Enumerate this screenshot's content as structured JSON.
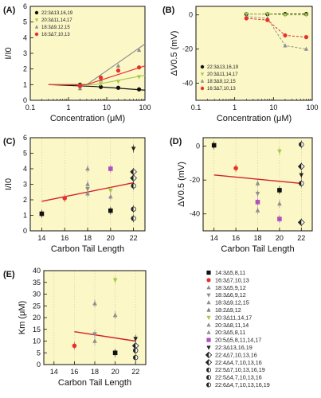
{
  "colors": {
    "plot_bg": "#fbf7c7",
    "species": {
      "14:3": "#111111",
      "16:3": "#e8302a",
      "18:3": "#8f8f8f",
      "18:2": "#7f7f7f",
      "20:3": "#a6c94a",
      "20:5": "#b050c0",
      "22:3": "#222222",
      "22:4": "#222222",
      "22:5": "#222222",
      "22:6": "#222222"
    }
  },
  "legend_E": [
    {
      "label": "14:3Δ5,8,11",
      "color": "#111111",
      "marker": "square"
    },
    {
      "label": "16:3Δ7,10,13",
      "color": "#e8302a",
      "marker": "circle"
    },
    {
      "label": "18:3Δ5,9,12",
      "color": "#8f8f8f",
      "marker": "triangle"
    },
    {
      "label": "18:3Δ6,9,12",
      "color": "#8f8f8f",
      "marker": "triangle-down"
    },
    {
      "label": "18:3Δ9,12,15",
      "color": "#8f8f8f",
      "marker": "triangle"
    },
    {
      "label": "18:2Δ9,12",
      "color": "#7f7f7f",
      "marker": "triangle"
    },
    {
      "label": "20:3Δ11,14,17",
      "color": "#a6c94a",
      "marker": "triangle-down"
    },
    {
      "label": "20:3Δ8,11,14",
      "color": "#8f8f8f",
      "marker": "triangle"
    },
    {
      "label": "20:3Δ5,8,11",
      "color": "#8f8f8f",
      "marker": "triangle"
    },
    {
      "label": "20:5Δ5,8,11,14,17",
      "color": "#b050c0",
      "marker": "square"
    },
    {
      "label": "22:3Δ13,16,19",
      "color": "#222222",
      "marker": "triangle-down"
    },
    {
      "label": "22:4Δ7,10,13,16",
      "color": "#222222",
      "marker": "diamond-half"
    },
    {
      "label": "22:4Δ4,7,10,13,16",
      "color": "#222222",
      "marker": "diamond-half"
    },
    {
      "label": "22:5Δ7,10,13,16,19",
      "color": "#222222",
      "marker": "circle-half"
    },
    {
      "label": "22:5Δ4,7,10,13,16",
      "color": "#222222",
      "marker": "circle-half"
    },
    {
      "label": "22:6Δ4,7,10,13,16,19",
      "color": "#222222",
      "marker": "circle-half"
    }
  ],
  "chart_data": [
    {
      "panel": "(A)",
      "type": "line",
      "xscale": "log",
      "xlabel": "Concentration (μM)",
      "ylabel": "I/I0",
      "xlim": [
        0.1,
        100
      ],
      "ylim": [
        0,
        6
      ],
      "xticks": [
        "0.1",
        "1",
        "10",
        "100"
      ],
      "yticks": [
        "0",
        "1",
        "2",
        "3",
        "4",
        "5",
        "6"
      ],
      "legend": "upper-left",
      "series": [
        {
          "name": "22:3Δ13,16,19",
          "color": "#111111",
          "marker": "circle",
          "x": [
            2,
            7,
            20,
            70
          ],
          "y": [
            1.0,
            0.85,
            0.8,
            0.7
          ],
          "fit": [
            [
              0.3,
              1.0
            ],
            [
              5,
              0.88
            ],
            [
              100,
              0.65
            ]
          ]
        },
        {
          "name": "20:3Δ11,14,17",
          "color": "#a6c94a",
          "marker": "triangle-down",
          "x": [
            2,
            7,
            20,
            70
          ],
          "y": [
            0.95,
            1.05,
            1.2,
            1.5
          ],
          "fit": [
            [
              0.3,
              1.0
            ],
            [
              5,
              1.0
            ],
            [
              100,
              1.6
            ]
          ]
        },
        {
          "name": "18:3Δ9,12,15",
          "color": "#8f8f8f",
          "marker": "triangle",
          "x": [
            2,
            7,
            20,
            70
          ],
          "y": [
            0.75,
            1.3,
            2.2,
            3.2
          ],
          "fit": [
            [
              0.3,
              1.0
            ],
            [
              3,
              1.0
            ],
            [
              100,
              3.6
            ]
          ]
        },
        {
          "name": "16:3Δ7,10,13",
          "color": "#e8302a",
          "marker": "circle",
          "x": [
            2,
            7,
            20,
            70
          ],
          "y": [
            0.9,
            1.45,
            1.9,
            2.1
          ],
          "fit": [
            [
              0.3,
              1.0
            ],
            [
              3,
              1.0
            ],
            [
              100,
              2.2
            ]
          ]
        }
      ]
    },
    {
      "panel": "(B)",
      "type": "line",
      "xscale": "log",
      "xlabel": "Concentration (μM)",
      "ylabel": "ΔV0.5 (mV)",
      "xlim": [
        0.1,
        100
      ],
      "ylim": [
        -50,
        5
      ],
      "xticks": [
        "0.1",
        "1",
        "10",
        "100"
      ],
      "yticks": [
        "0",
        "-20",
        "-40"
      ],
      "legend": "lower-left",
      "series": [
        {
          "name": "22:3Δ13,16,19",
          "color": "#111111",
          "marker": "circle",
          "x": [
            2,
            7,
            20,
            70
          ],
          "y": [
            0.5,
            0.5,
            0.5,
            0.5
          ]
        },
        {
          "name": "20:3Δ11,14,17",
          "color": "#a6c94a",
          "marker": "triangle-down",
          "x": [
            2,
            7,
            20,
            70
          ],
          "y": [
            0.5,
            0.5,
            0,
            0
          ]
        },
        {
          "name": "18:3Δ9,12,15",
          "color": "#8f8f8f",
          "marker": "triangle",
          "x": [
            2,
            7,
            20,
            70
          ],
          "y": [
            -1,
            -2,
            -18,
            -20
          ]
        },
        {
          "name": "16:3Δ7,10,13",
          "color": "#e8302a",
          "marker": "circle",
          "x": [
            2,
            7,
            20,
            70
          ],
          "y": [
            -2,
            -3,
            -12,
            -13
          ]
        }
      ]
    },
    {
      "panel": "(C)",
      "type": "scatter",
      "xlabel": "Carbon Tail Length",
      "ylabel": "I/I0",
      "xlim": [
        13,
        23
      ],
      "ylim": [
        0,
        6
      ],
      "xticks": [
        "14",
        "16",
        "18",
        "20",
        "22"
      ],
      "yticks": [
        "0",
        "1",
        "2",
        "3",
        "4",
        "5",
        "6"
      ],
      "regression": [
        [
          14,
          1.9
        ],
        [
          22,
          3.1
        ]
      ],
      "points": [
        {
          "x": 14,
          "y": 1.1,
          "color": "#111111",
          "marker": "square"
        },
        {
          "x": 16,
          "y": 2.1,
          "color": "#e8302a",
          "marker": "circle"
        },
        {
          "x": 18,
          "y": 2.4,
          "color": "#8f8f8f",
          "marker": "triangle"
        },
        {
          "x": 18,
          "y": 2.7,
          "color": "#8f8f8f",
          "marker": "triangle-down"
        },
        {
          "x": 18,
          "y": 3.0,
          "color": "#8f8f8f",
          "marker": "triangle"
        },
        {
          "x": 18,
          "y": 4.0,
          "color": "#8f8f8f",
          "marker": "triangle"
        },
        {
          "x": 20,
          "y": 4.0,
          "color": "#b050c0",
          "marker": "square"
        },
        {
          "x": 20,
          "y": 2.6,
          "color": "#a6c94a",
          "marker": "triangle-down"
        },
        {
          "x": 20,
          "y": 2.2,
          "color": "#8f8f8f",
          "marker": "triangle"
        },
        {
          "x": 20,
          "y": 1.3,
          "color": "#111111",
          "marker": "square"
        },
        {
          "x": 22,
          "y": 5.3,
          "color": "#222222",
          "marker": "triangle-down"
        },
        {
          "x": 22,
          "y": 3.8,
          "color": "#222222",
          "marker": "diamond-half"
        },
        {
          "x": 22,
          "y": 3.4,
          "color": "#222222",
          "marker": "diamond-half"
        },
        {
          "x": 22,
          "y": 2.9,
          "color": "#222222",
          "marker": "circle-half"
        },
        {
          "x": 22,
          "y": 1.4,
          "color": "#222222",
          "marker": "circle-half"
        },
        {
          "x": 22,
          "y": 0.8,
          "color": "#222222",
          "marker": "circle-half"
        }
      ]
    },
    {
      "panel": "(D)",
      "type": "scatter",
      "xlabel": "Carbon Tail Length",
      "ylabel": "ΔV0.5 (mV)",
      "xlim": [
        13,
        23
      ],
      "ylim": [
        -50,
        5
      ],
      "xticks": [
        "14",
        "16",
        "18",
        "20",
        "22"
      ],
      "yticks": [
        "0",
        "-20",
        "-40"
      ],
      "regression": [
        [
          14,
          -17
        ],
        [
          22,
          -22
        ]
      ],
      "points": [
        {
          "x": 14,
          "y": 0.5,
          "color": "#111111",
          "marker": "square"
        },
        {
          "x": 16,
          "y": -13,
          "color": "#e8302a",
          "marker": "circle"
        },
        {
          "x": 18,
          "y": -22,
          "color": "#8f8f8f",
          "marker": "triangle"
        },
        {
          "x": 18,
          "y": -28,
          "color": "#8f8f8f",
          "marker": "triangle-down"
        },
        {
          "x": 18,
          "y": -33,
          "color": "#b050c0",
          "marker": "square"
        },
        {
          "x": 18,
          "y": -38,
          "color": "#8f8f8f",
          "marker": "triangle"
        },
        {
          "x": 20,
          "y": -3,
          "color": "#a6c94a",
          "marker": "triangle-down"
        },
        {
          "x": 20,
          "y": -26,
          "color": "#111111",
          "marker": "square"
        },
        {
          "x": 20,
          "y": -34,
          "color": "#8f8f8f",
          "marker": "triangle"
        },
        {
          "x": 20,
          "y": -43,
          "color": "#b050c0",
          "marker": "square"
        },
        {
          "x": 22,
          "y": 1,
          "color": "#222222",
          "marker": "circle-half"
        },
        {
          "x": 22,
          "y": -12,
          "color": "#222222",
          "marker": "diamond-half"
        },
        {
          "x": 22,
          "y": -17,
          "color": "#222222",
          "marker": "triangle-down"
        },
        {
          "x": 22,
          "y": -22,
          "color": "#222222",
          "marker": "circle-half"
        },
        {
          "x": 22,
          "y": -45,
          "color": "#222222",
          "marker": "diamond-half"
        }
      ]
    },
    {
      "panel": "(E)",
      "type": "scatter",
      "xlabel": "Carbon Tail Length",
      "ylabel": "Km (μM)",
      "xlim": [
        13,
        23
      ],
      "ylim": [
        0,
        40
      ],
      "xticks": [
        "14",
        "16",
        "18",
        "20",
        "22"
      ],
      "yticks": [
        "0",
        "5",
        "10",
        "15",
        "20",
        "25",
        "30",
        "35",
        "40"
      ],
      "regression": [
        [
          16,
          14
        ],
        [
          22,
          10
        ]
      ],
      "points": [
        {
          "x": 16,
          "y": 8,
          "color": "#e8302a",
          "marker": "circle"
        },
        {
          "x": 18,
          "y": 10,
          "color": "#8f8f8f",
          "marker": "triangle"
        },
        {
          "x": 18,
          "y": 13,
          "color": "#8f8f8f",
          "marker": "triangle-down"
        },
        {
          "x": 18,
          "y": 26,
          "color": "#8f8f8f",
          "marker": "triangle"
        },
        {
          "x": 20,
          "y": 36,
          "color": "#a6c94a",
          "marker": "triangle-down"
        },
        {
          "x": 20,
          "y": 21,
          "color": "#8f8f8f",
          "marker": "triangle"
        },
        {
          "x": 20,
          "y": 5,
          "color": "#111111",
          "marker": "square"
        },
        {
          "x": 22,
          "y": 11,
          "color": "#222222",
          "marker": "triangle-down"
        },
        {
          "x": 22,
          "y": 8,
          "color": "#222222",
          "marker": "diamond-half"
        },
        {
          "x": 22,
          "y": 6,
          "color": "#222222",
          "marker": "circle-half"
        },
        {
          "x": 22,
          "y": 3,
          "color": "#222222",
          "marker": "circle-half"
        }
      ]
    }
  ]
}
